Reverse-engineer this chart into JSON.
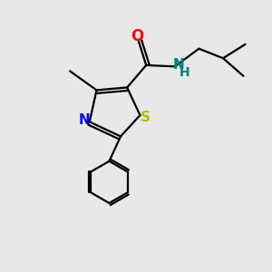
{
  "background_color": "#e8e8e8",
  "S_color": "#b8b800",
  "N_color": "#0000ff",
  "O_color": "#ff0000",
  "NH_color": "#008080",
  "bond_color": "#000000",
  "figsize": [
    3.0,
    3.0
  ],
  "dpi": 100,
  "xlim": [
    -1.6,
    2.2
  ],
  "ylim": [
    -2.8,
    1.4
  ],
  "bond_lw": 1.6,
  "font_size": 11
}
